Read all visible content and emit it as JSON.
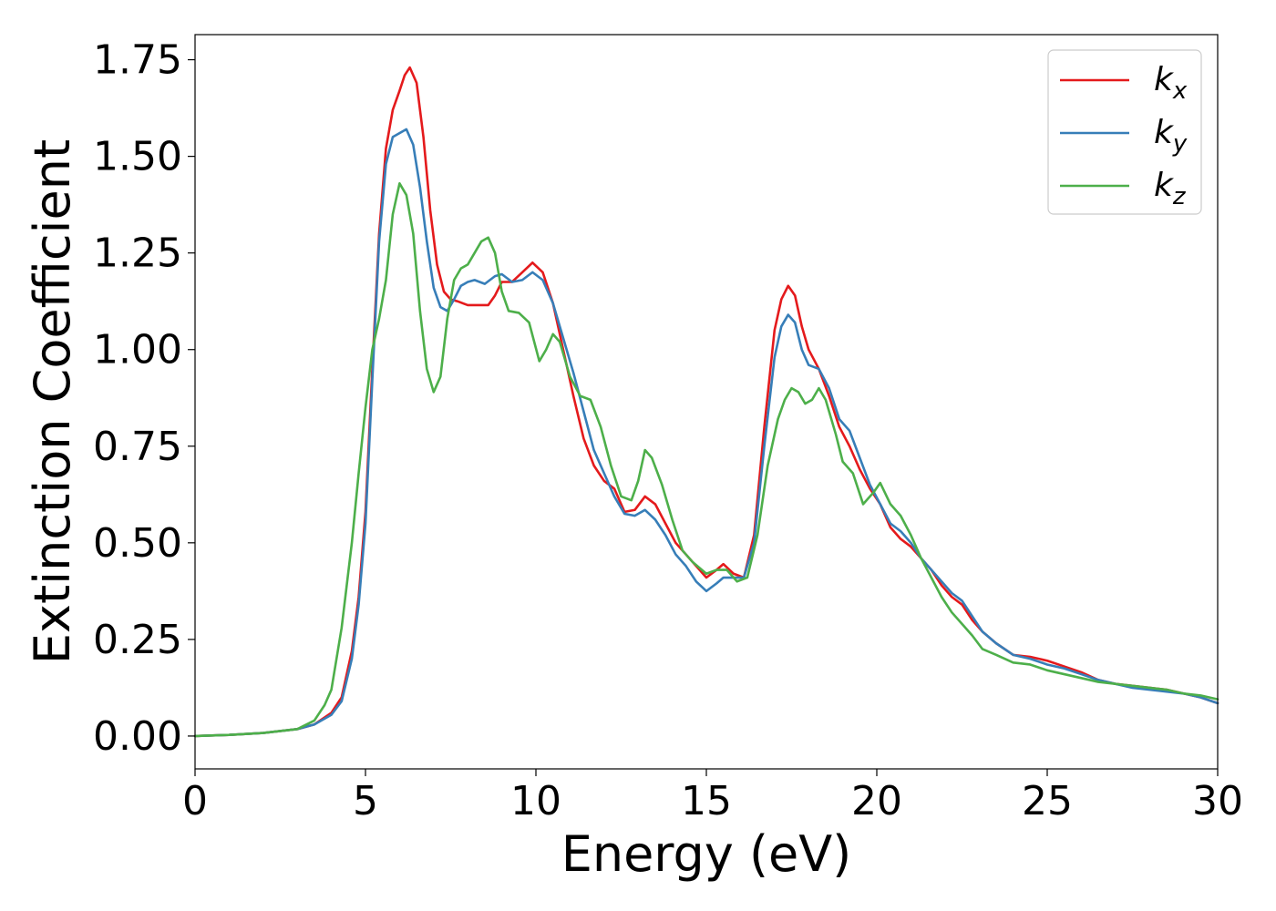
{
  "chart_data": {
    "type": "line",
    "title": "",
    "xlabel": "Energy (eV)",
    "ylabel": "Extinction Coefficient",
    "xlim": [
      0,
      30
    ],
    "ylim": [
      -0.085,
      1.815
    ],
    "xticks": [
      0,
      5,
      10,
      15,
      20,
      25,
      30
    ],
    "yticks": [
      0.0,
      0.25,
      0.5,
      0.75,
      1.0,
      1.25,
      1.5,
      1.75
    ],
    "xtick_labels": [
      "0",
      "5",
      "10",
      "15",
      "20",
      "25",
      "30"
    ],
    "ytick_labels": [
      "0.00",
      "0.25",
      "0.50",
      "0.75",
      "1.00",
      "1.25",
      "1.50",
      "1.75"
    ],
    "grid": false,
    "legend_position": "top-right",
    "series": [
      {
        "name": "k_x",
        "legend_main": "k",
        "legend_sub": "x",
        "color": "#e41a1c",
        "points": [
          [
            0,
            0
          ],
          [
            1,
            0.003
          ],
          [
            2,
            0.008
          ],
          [
            3,
            0.018
          ],
          [
            3.5,
            0.03
          ],
          [
            4,
            0.06
          ],
          [
            4.3,
            0.1
          ],
          [
            4.6,
            0.22
          ],
          [
            4.8,
            0.36
          ],
          [
            5.0,
            0.58
          ],
          [
            5.2,
            0.95
          ],
          [
            5.4,
            1.3
          ],
          [
            5.6,
            1.52
          ],
          [
            5.8,
            1.62
          ],
          [
            6.0,
            1.67
          ],
          [
            6.15,
            1.71
          ],
          [
            6.3,
            1.73
          ],
          [
            6.5,
            1.69
          ],
          [
            6.7,
            1.55
          ],
          [
            6.9,
            1.36
          ],
          [
            7.1,
            1.22
          ],
          [
            7.3,
            1.15
          ],
          [
            7.5,
            1.13
          ],
          [
            7.7,
            1.125
          ],
          [
            8.0,
            1.115
          ],
          [
            8.3,
            1.115
          ],
          [
            8.6,
            1.115
          ],
          [
            8.8,
            1.14
          ],
          [
            9.0,
            1.175
          ],
          [
            9.3,
            1.175
          ],
          [
            9.6,
            1.2
          ],
          [
            9.9,
            1.225
          ],
          [
            10.2,
            1.2
          ],
          [
            10.5,
            1.12
          ],
          [
            10.8,
            1.0
          ],
          [
            11.1,
            0.88
          ],
          [
            11.4,
            0.77
          ],
          [
            11.7,
            0.7
          ],
          [
            12.0,
            0.66
          ],
          [
            12.3,
            0.64
          ],
          [
            12.6,
            0.58
          ],
          [
            12.9,
            0.585
          ],
          [
            13.2,
            0.62
          ],
          [
            13.5,
            0.6
          ],
          [
            13.8,
            0.55
          ],
          [
            14.1,
            0.5
          ],
          [
            14.4,
            0.47
          ],
          [
            14.7,
            0.44
          ],
          [
            15.0,
            0.41
          ],
          [
            15.3,
            0.43
          ],
          [
            15.5,
            0.445
          ],
          [
            15.8,
            0.42
          ],
          [
            16.1,
            0.41
          ],
          [
            16.4,
            0.52
          ],
          [
            16.7,
            0.8
          ],
          [
            17.0,
            1.05
          ],
          [
            17.2,
            1.13
          ],
          [
            17.4,
            1.165
          ],
          [
            17.6,
            1.14
          ],
          [
            17.8,
            1.06
          ],
          [
            18.0,
            1.0
          ],
          [
            18.3,
            0.95
          ],
          [
            18.6,
            0.88
          ],
          [
            18.9,
            0.8
          ],
          [
            19.2,
            0.75
          ],
          [
            19.5,
            0.69
          ],
          [
            19.8,
            0.64
          ],
          [
            20.1,
            0.6
          ],
          [
            20.4,
            0.54
          ],
          [
            20.7,
            0.51
          ],
          [
            21.0,
            0.49
          ],
          [
            21.3,
            0.46
          ],
          [
            21.6,
            0.43
          ],
          [
            21.9,
            0.39
          ],
          [
            22.2,
            0.36
          ],
          [
            22.5,
            0.34
          ],
          [
            22.8,
            0.3
          ],
          [
            23.1,
            0.27
          ],
          [
            23.5,
            0.24
          ],
          [
            24.0,
            0.21
          ],
          [
            24.5,
            0.205
          ],
          [
            25.0,
            0.195
          ],
          [
            25.5,
            0.18
          ],
          [
            26.0,
            0.165
          ],
          [
            26.5,
            0.145
          ],
          [
            27.0,
            0.135
          ],
          [
            27.5,
            0.13
          ],
          [
            28.0,
            0.125
          ],
          [
            28.5,
            0.12
          ],
          [
            29.0,
            0.11
          ],
          [
            29.5,
            0.1
          ],
          [
            30,
            0.085
          ]
        ]
      },
      {
        "name": "k_y",
        "legend_main": "k",
        "legend_sub": "y",
        "color": "#377eb8",
        "points": [
          [
            0,
            0
          ],
          [
            1,
            0.003
          ],
          [
            2,
            0.008
          ],
          [
            3,
            0.018
          ],
          [
            3.5,
            0.03
          ],
          [
            4,
            0.055
          ],
          [
            4.3,
            0.09
          ],
          [
            4.6,
            0.2
          ],
          [
            4.8,
            0.34
          ],
          [
            5.0,
            0.55
          ],
          [
            5.2,
            0.92
          ],
          [
            5.4,
            1.28
          ],
          [
            5.6,
            1.48
          ],
          [
            5.8,
            1.55
          ],
          [
            6.0,
            1.56
          ],
          [
            6.2,
            1.57
          ],
          [
            6.4,
            1.53
          ],
          [
            6.6,
            1.42
          ],
          [
            6.8,
            1.28
          ],
          [
            7.0,
            1.16
          ],
          [
            7.2,
            1.11
          ],
          [
            7.4,
            1.1
          ],
          [
            7.6,
            1.13
          ],
          [
            7.8,
            1.165
          ],
          [
            8.0,
            1.175
          ],
          [
            8.2,
            1.18
          ],
          [
            8.5,
            1.17
          ],
          [
            8.8,
            1.19
          ],
          [
            9.0,
            1.195
          ],
          [
            9.3,
            1.175
          ],
          [
            9.6,
            1.18
          ],
          [
            9.9,
            1.2
          ],
          [
            10.2,
            1.18
          ],
          [
            10.5,
            1.12
          ],
          [
            10.8,
            1.03
          ],
          [
            11.1,
            0.94
          ],
          [
            11.4,
            0.84
          ],
          [
            11.7,
            0.74
          ],
          [
            12.0,
            0.68
          ],
          [
            12.3,
            0.62
          ],
          [
            12.6,
            0.575
          ],
          [
            12.9,
            0.57
          ],
          [
            13.2,
            0.585
          ],
          [
            13.5,
            0.56
          ],
          [
            13.8,
            0.52
          ],
          [
            14.1,
            0.47
          ],
          [
            14.4,
            0.44
          ],
          [
            14.7,
            0.4
          ],
          [
            15.0,
            0.375
          ],
          [
            15.3,
            0.395
          ],
          [
            15.5,
            0.41
          ],
          [
            15.8,
            0.41
          ],
          [
            16.1,
            0.41
          ],
          [
            16.4,
            0.5
          ],
          [
            16.7,
            0.75
          ],
          [
            17.0,
            0.98
          ],
          [
            17.2,
            1.06
          ],
          [
            17.4,
            1.09
          ],
          [
            17.6,
            1.07
          ],
          [
            17.8,
            1.0
          ],
          [
            18.0,
            0.96
          ],
          [
            18.3,
            0.95
          ],
          [
            18.6,
            0.9
          ],
          [
            18.9,
            0.82
          ],
          [
            19.2,
            0.79
          ],
          [
            19.5,
            0.72
          ],
          [
            19.8,
            0.65
          ],
          [
            20.1,
            0.6
          ],
          [
            20.4,
            0.55
          ],
          [
            20.7,
            0.53
          ],
          [
            21.0,
            0.5
          ],
          [
            21.3,
            0.46
          ],
          [
            21.6,
            0.43
          ],
          [
            21.9,
            0.4
          ],
          [
            22.2,
            0.37
          ],
          [
            22.5,
            0.35
          ],
          [
            22.8,
            0.31
          ],
          [
            23.1,
            0.27
          ],
          [
            23.5,
            0.24
          ],
          [
            24.0,
            0.21
          ],
          [
            24.5,
            0.2
          ],
          [
            25.0,
            0.185
          ],
          [
            25.5,
            0.175
          ],
          [
            26.0,
            0.16
          ],
          [
            26.5,
            0.145
          ],
          [
            27.0,
            0.135
          ],
          [
            27.5,
            0.125
          ],
          [
            28.0,
            0.12
          ],
          [
            28.5,
            0.115
          ],
          [
            29.0,
            0.11
          ],
          [
            29.5,
            0.1
          ],
          [
            30,
            0.085
          ]
        ]
      },
      {
        "name": "k_z",
        "legend_main": "k",
        "legend_sub": "z",
        "color": "#4daf4a",
        "points": [
          [
            0,
            0
          ],
          [
            1,
            0.003
          ],
          [
            2,
            0.008
          ],
          [
            3,
            0.018
          ],
          [
            3.5,
            0.04
          ],
          [
            3.8,
            0.08
          ],
          [
            4.0,
            0.12
          ],
          [
            4.3,
            0.28
          ],
          [
            4.6,
            0.5
          ],
          [
            4.8,
            0.68
          ],
          [
            5.0,
            0.85
          ],
          [
            5.2,
            1.0
          ],
          [
            5.4,
            1.08
          ],
          [
            5.6,
            1.18
          ],
          [
            5.8,
            1.35
          ],
          [
            6.0,
            1.43
          ],
          [
            6.2,
            1.4
          ],
          [
            6.4,
            1.3
          ],
          [
            6.6,
            1.1
          ],
          [
            6.8,
            0.95
          ],
          [
            7.0,
            0.89
          ],
          [
            7.2,
            0.93
          ],
          [
            7.4,
            1.08
          ],
          [
            7.6,
            1.18
          ],
          [
            7.8,
            1.21
          ],
          [
            8.0,
            1.22
          ],
          [
            8.2,
            1.25
          ],
          [
            8.4,
            1.28
          ],
          [
            8.6,
            1.29
          ],
          [
            8.8,
            1.25
          ],
          [
            9.0,
            1.15
          ],
          [
            9.2,
            1.1
          ],
          [
            9.5,
            1.095
          ],
          [
            9.8,
            1.07
          ],
          [
            10.1,
            0.97
          ],
          [
            10.3,
            1.0
          ],
          [
            10.5,
            1.04
          ],
          [
            10.7,
            1.02
          ],
          [
            11.0,
            0.93
          ],
          [
            11.3,
            0.88
          ],
          [
            11.6,
            0.87
          ],
          [
            11.9,
            0.8
          ],
          [
            12.2,
            0.7
          ],
          [
            12.5,
            0.62
          ],
          [
            12.8,
            0.61
          ],
          [
            13.0,
            0.66
          ],
          [
            13.2,
            0.74
          ],
          [
            13.4,
            0.72
          ],
          [
            13.7,
            0.65
          ],
          [
            14.0,
            0.56
          ],
          [
            14.3,
            0.48
          ],
          [
            14.6,
            0.45
          ],
          [
            15.0,
            0.42
          ],
          [
            15.3,
            0.43
          ],
          [
            15.6,
            0.43
          ],
          [
            15.9,
            0.4
          ],
          [
            16.2,
            0.41
          ],
          [
            16.5,
            0.52
          ],
          [
            16.8,
            0.7
          ],
          [
            17.1,
            0.82
          ],
          [
            17.3,
            0.87
          ],
          [
            17.5,
            0.9
          ],
          [
            17.7,
            0.89
          ],
          [
            17.9,
            0.86
          ],
          [
            18.1,
            0.87
          ],
          [
            18.3,
            0.9
          ],
          [
            18.5,
            0.87
          ],
          [
            18.8,
            0.78
          ],
          [
            19.0,
            0.71
          ],
          [
            19.3,
            0.68
          ],
          [
            19.6,
            0.6
          ],
          [
            19.9,
            0.63
          ],
          [
            20.1,
            0.655
          ],
          [
            20.4,
            0.6
          ],
          [
            20.7,
            0.57
          ],
          [
            21.0,
            0.52
          ],
          [
            21.3,
            0.46
          ],
          [
            21.6,
            0.41
          ],
          [
            21.9,
            0.36
          ],
          [
            22.2,
            0.32
          ],
          [
            22.5,
            0.29
          ],
          [
            22.8,
            0.26
          ],
          [
            23.1,
            0.225
          ],
          [
            23.5,
            0.21
          ],
          [
            24.0,
            0.19
          ],
          [
            24.5,
            0.185
          ],
          [
            25.0,
            0.17
          ],
          [
            25.5,
            0.16
          ],
          [
            26.0,
            0.15
          ],
          [
            26.5,
            0.14
          ],
          [
            27.0,
            0.135
          ],
          [
            27.5,
            0.13
          ],
          [
            28.0,
            0.125
          ],
          [
            28.5,
            0.12
          ],
          [
            29.0,
            0.11
          ],
          [
            29.5,
            0.105
          ],
          [
            30,
            0.095
          ]
        ]
      }
    ]
  }
}
